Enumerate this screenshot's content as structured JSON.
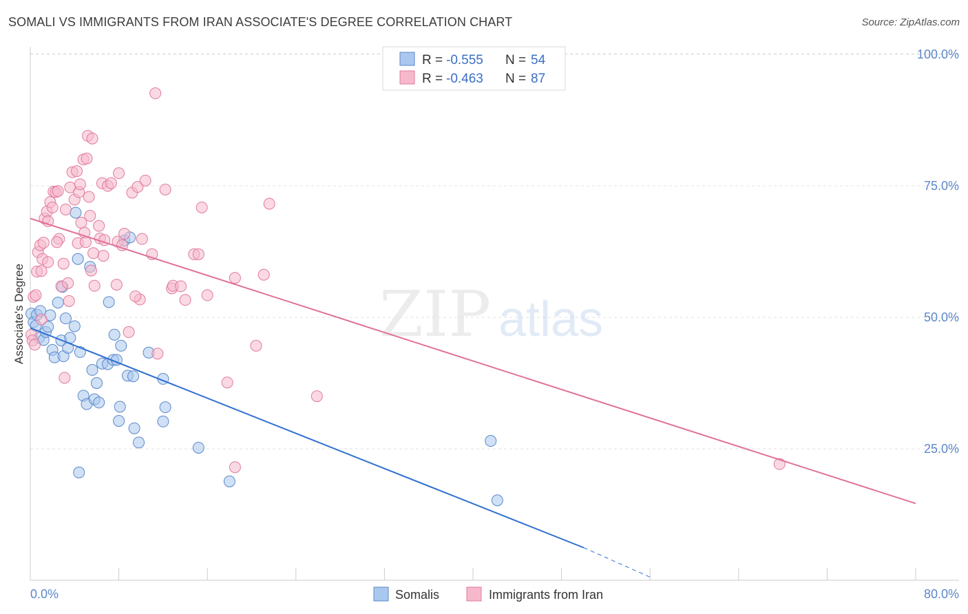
{
  "title": "SOMALI VS IMMIGRANTS FROM IRAN ASSOCIATE'S DEGREE CORRELATION CHART",
  "source": "Source: ZipAtlas.com",
  "watermark": {
    "zip": "ZIP",
    "atlas": "atlas"
  },
  "legend_stats": [
    {
      "r_label": "R =",
      "r_value": "-0.555",
      "n_label": "N =",
      "n_value": "54",
      "color": "#aac8ef",
      "stroke": "#5b87c9"
    },
    {
      "r_label": "R =",
      "r_value": "-0.463",
      "n_label": "N =",
      "n_value": "87",
      "color": "#f6b9cc",
      "stroke": "#e07a9c"
    }
  ],
  "chart_data": {
    "type": "scatter",
    "title": "SOMALI VS IMMIGRANTS FROM IRAN ASSOCIATE'S DEGREE CORRELATION CHART",
    "xlabel": "",
    "ylabel": "Associate's Degree",
    "xlim": [
      0,
      80
    ],
    "ylim": [
      0,
      105
    ],
    "x_tick_labels": [
      "0.0%",
      "80.0%"
    ],
    "y_ticks": [
      25,
      50,
      75,
      100
    ],
    "y_tick_labels": [
      "25.0%",
      "50.0%",
      "75.0%",
      "100.0%"
    ],
    "grid": true,
    "legend_position": "top-center",
    "series": [
      {
        "name": "Somalis",
        "color": "#aac8ef",
        "stroke": "#5b87c9",
        "line_color": "#2f6fd0",
        "trend": {
          "x": [
            0,
            50
          ],
          "y": [
            48.0,
            6.2
          ],
          "dashed_x": [
            50,
            56
          ],
          "dashed_y": [
            6.2,
            0.6
          ]
        },
        "points": [
          [
            0.1,
            50.7
          ],
          [
            0.3,
            49.1
          ],
          [
            0.5,
            48.4
          ],
          [
            0.6,
            50.5
          ],
          [
            0.8,
            46.1
          ],
          [
            0.9,
            51.2
          ],
          [
            1.2,
            45.7
          ],
          [
            1.4,
            47.2
          ],
          [
            1.6,
            48.2
          ],
          [
            1.8,
            50.4
          ],
          [
            2.0,
            43.8
          ],
          [
            2.2,
            42.4
          ],
          [
            2.5,
            52.8
          ],
          [
            2.8,
            45.6
          ],
          [
            3.0,
            42.6
          ],
          [
            3.2,
            49.8
          ],
          [
            3.4,
            44.2
          ],
          [
            3.6,
            46.1
          ],
          [
            4.1,
            69.9
          ],
          [
            4.0,
            48.3
          ],
          [
            4.5,
            43.4
          ],
          [
            4.8,
            35.1
          ],
          [
            5.1,
            33.5
          ],
          [
            5.4,
            59.6
          ],
          [
            5.6,
            40.0
          ],
          [
            5.8,
            34.4
          ],
          [
            6.0,
            37.5
          ],
          [
            6.2,
            33.8
          ],
          [
            6.5,
            41.2
          ],
          [
            7.0,
            41.1
          ],
          [
            7.1,
            52.9
          ],
          [
            7.5,
            41.9
          ],
          [
            7.6,
            46.7
          ],
          [
            7.8,
            41.9
          ],
          [
            8.0,
            30.3
          ],
          [
            8.1,
            33.0
          ],
          [
            8.2,
            44.6
          ],
          [
            8.5,
            64.6
          ],
          [
            8.8,
            38.9
          ],
          [
            9.0,
            65.2
          ],
          [
            9.3,
            38.8
          ],
          [
            9.4,
            28.9
          ],
          [
            9.8,
            26.2
          ],
          [
            10.7,
            43.3
          ],
          [
            12.0,
            38.3
          ],
          [
            12.0,
            30.2
          ],
          [
            12.2,
            32.9
          ],
          [
            4.3,
            61.1
          ],
          [
            15.2,
            25.2
          ],
          [
            18.0,
            18.8
          ],
          [
            42.2,
            15.2
          ],
          [
            41.6,
            26.5
          ],
          [
            4.4,
            20.5
          ],
          [
            2.9,
            55.8
          ]
        ]
      },
      {
        "name": "Immigrants from Iran",
        "color": "#f6b9cc",
        "stroke": "#e07a9c",
        "line_color": "#e0709a",
        "trend": {
          "x": [
            0,
            80
          ],
          "y": [
            68.8,
            14.6
          ]
        },
        "points": [
          [
            0.1,
            46.7
          ],
          [
            0.2,
            45.6
          ],
          [
            0.3,
            53.9
          ],
          [
            0.5,
            54.2
          ],
          [
            0.6,
            58.7
          ],
          [
            0.7,
            62.4
          ],
          [
            0.9,
            63.7
          ],
          [
            1.0,
            58.8
          ],
          [
            1.1,
            61.1
          ],
          [
            1.2,
            64.2
          ],
          [
            1.3,
            68.8
          ],
          [
            1.5,
            70.1
          ],
          [
            1.6,
            68.3
          ],
          [
            1.8,
            71.9
          ],
          [
            2.0,
            70.9
          ],
          [
            2.1,
            73.9
          ],
          [
            2.3,
            73.8
          ],
          [
            2.5,
            74.0
          ],
          [
            2.6,
            64.9
          ],
          [
            2.8,
            55.9
          ],
          [
            3.0,
            60.2
          ],
          [
            3.2,
            70.5
          ],
          [
            3.4,
            56.5
          ],
          [
            3.5,
            53.1
          ],
          [
            3.6,
            74.7
          ],
          [
            3.8,
            77.6
          ],
          [
            4.0,
            72.4
          ],
          [
            4.2,
            77.8
          ],
          [
            4.3,
            64.1
          ],
          [
            4.4,
            73.8
          ],
          [
            4.5,
            75.3
          ],
          [
            4.6,
            68.0
          ],
          [
            4.8,
            80.0
          ],
          [
            4.9,
            66.1
          ],
          [
            5.0,
            64.3
          ],
          [
            5.1,
            80.2
          ],
          [
            5.2,
            84.5
          ],
          [
            5.3,
            72.9
          ],
          [
            5.4,
            69.3
          ],
          [
            5.5,
            58.9
          ],
          [
            5.6,
            84.0
          ],
          [
            5.7,
            62.2
          ],
          [
            5.8,
            56.0
          ],
          [
            6.2,
            67.4
          ],
          [
            6.3,
            65.0
          ],
          [
            6.5,
            75.5
          ],
          [
            6.6,
            61.7
          ],
          [
            6.7,
            64.7
          ],
          [
            7.0,
            75.0
          ],
          [
            7.3,
            75.5
          ],
          [
            7.8,
            56.2
          ],
          [
            7.9,
            64.4
          ],
          [
            8.0,
            77.4
          ],
          [
            8.3,
            63.7
          ],
          [
            8.5,
            65.9
          ],
          [
            8.9,
            47.2
          ],
          [
            9.2,
            73.7
          ],
          [
            9.7,
            74.8
          ],
          [
            9.9,
            53.4
          ],
          [
            10.1,
            64.9
          ],
          [
            10.4,
            76.0
          ],
          [
            11.0,
            62.0
          ],
          [
            11.5,
            43.1
          ],
          [
            12.2,
            74.3
          ],
          [
            12.8,
            55.5
          ],
          [
            12.9,
            56.0
          ],
          [
            13.6,
            55.9
          ],
          [
            14.0,
            53.3
          ],
          [
            14.8,
            62.0
          ],
          [
            15.2,
            62.0
          ],
          [
            15.5,
            70.9
          ],
          [
            16.0,
            54.2
          ],
          [
            17.8,
            37.6
          ],
          [
            18.5,
            21.5
          ],
          [
            18.5,
            57.5
          ],
          [
            20.4,
            44.6
          ],
          [
            21.1,
            58.1
          ],
          [
            21.6,
            71.6
          ],
          [
            25.9,
            35.0
          ],
          [
            11.3,
            92.6
          ],
          [
            1.0,
            49.6
          ],
          [
            0.4,
            44.8
          ],
          [
            3.1,
            38.5
          ],
          [
            1.6,
            60.5
          ],
          [
            2.4,
            64.3
          ],
          [
            67.7,
            22.1
          ],
          [
            9.5,
            54.0
          ]
        ]
      }
    ]
  },
  "bottom_legend": [
    {
      "label": "Somalis",
      "color": "#aac8ef",
      "stroke": "#5b87c9"
    },
    {
      "label": "Immigrants from Iran",
      "color": "#f6b9cc",
      "stroke": "#e07a9c"
    }
  ]
}
